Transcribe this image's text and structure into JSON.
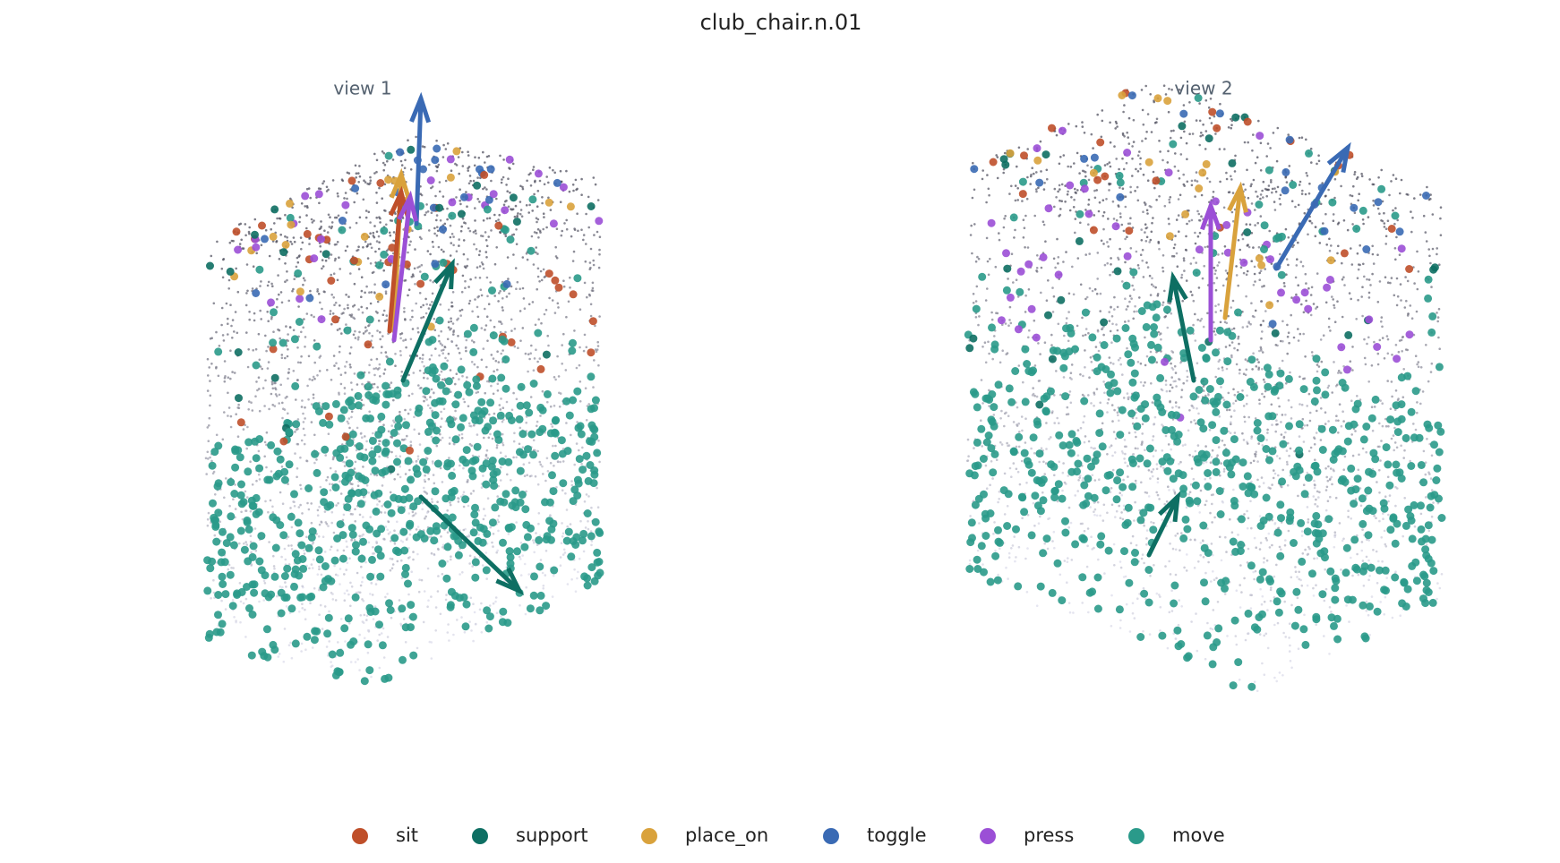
{
  "title": "club_chair.n.01",
  "views": [
    {
      "label": "view 1"
    },
    {
      "label": "view 2"
    }
  ],
  "legend": [
    {
      "name": "sit",
      "color": "#bf4f2a"
    },
    {
      "name": "support",
      "color": "#0e6f63"
    },
    {
      "name": "place_on",
      "color": "#d9a23c"
    },
    {
      "name": "toggle",
      "color": "#3a6ab4"
    },
    {
      "name": "press",
      "color": "#9b4fd6"
    },
    {
      "name": "move",
      "color": "#2a9a8a"
    }
  ]
}
